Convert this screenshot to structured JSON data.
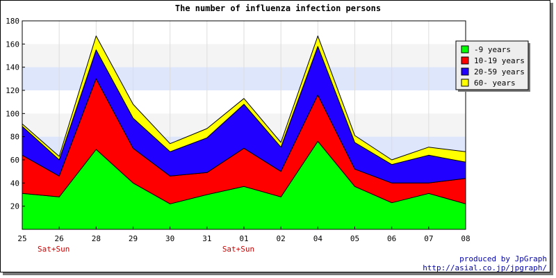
{
  "chart_data": {
    "type": "area",
    "stacked": true,
    "title": "The number of influenza infection persons",
    "xlabel": "",
    "ylabel": "",
    "categories": [
      "25",
      "26",
      "28",
      "29",
      "30",
      "31",
      "01",
      "02",
      "04",
      "05",
      "06",
      "07",
      "08"
    ],
    "category_notes": [
      "",
      "Sat+Sun",
      "",
      "",
      "",
      "",
      "Sat+Sun",
      "",
      "",
      "",
      "",
      "",
      ""
    ],
    "ylim": [
      0,
      180
    ],
    "yticks": [
      20,
      40,
      60,
      80,
      100,
      120,
      140,
      160,
      180
    ],
    "grid": "horizontal bands",
    "band_colors": [
      "#ffffff",
      "#f4f4f4",
      "#dde6fb"
    ],
    "legend_position": "right",
    "series": [
      {
        "name": "-9 years",
        "color": "#00ff00",
        "values": [
          31,
          28,
          69,
          40,
          22,
          30,
          37,
          28,
          76,
          37,
          23,
          31,
          22
        ]
      },
      {
        "name": "10-19 years",
        "color": "#ff0000",
        "values": [
          33,
          18,
          61,
          30,
          24,
          19,
          33,
          22,
          40,
          15,
          17,
          9,
          22
        ]
      },
      {
        "name": "20-59 years",
        "color": "#2200ff",
        "values": [
          25,
          14,
          25,
          26,
          21,
          30,
          38,
          21,
          42,
          23,
          16,
          24,
          14
        ]
      },
      {
        "name": "60- years",
        "color": "#ffff00",
        "values": [
          2,
          3,
          12,
          12,
          7,
          8,
          5,
          4,
          9,
          6,
          4,
          7,
          9
        ]
      }
    ]
  },
  "credit": {
    "line1": "produced by JpGraph",
    "line2": "http://asial.co.jp/jpgraph/"
  }
}
